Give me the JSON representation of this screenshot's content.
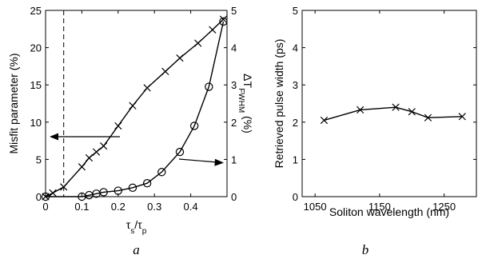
{
  "chart_data": [
    {
      "id": "a",
      "panel_label": "a",
      "type": "line",
      "xlabel": "τ_s/τ_p",
      "xlim": [
        0,
        0.5
      ],
      "xticks": [
        0,
        0.1,
        0.2,
        0.3,
        0.4
      ],
      "xtick_labels": [
        "0",
        "0.1",
        "0.2",
        "0.3",
        "0.4"
      ],
      "ylabel_left": "Misfit parameter (%)",
      "ylim_left": [
        0,
        25
      ],
      "yticks_left": [
        0,
        5,
        10,
        15,
        20,
        25
      ],
      "ylabel_right": "ΔT_FWHM (%)",
      "ylim_right": [
        0,
        5
      ],
      "yticks_right": [
        0,
        1,
        2,
        3,
        4,
        5
      ],
      "vline_x": 0.05,
      "series": [
        {
          "axis": "left",
          "marker": "x",
          "x": [
            0,
            0.02,
            0.05,
            0.1,
            0.12,
            0.14,
            0.16,
            0.2,
            0.24,
            0.28,
            0.33,
            0.37,
            0.42,
            0.46,
            0.49
          ],
          "y": [
            0,
            0.5,
            1.3,
            4.0,
            5.2,
            6.0,
            6.8,
            9.5,
            12.2,
            14.6,
            16.8,
            18.6,
            20.6,
            22.4,
            23.8
          ]
        },
        {
          "axis": "right",
          "marker": "o",
          "x": [
            0,
            0.1,
            0.12,
            0.14,
            0.16,
            0.2,
            0.24,
            0.28,
            0.32,
            0.37,
            0.41,
            0.45,
            0.49
          ],
          "y": [
            0,
            0.0,
            0.04,
            0.08,
            0.12,
            0.16,
            0.24,
            0.36,
            0.66,
            1.2,
            1.9,
            2.95,
            4.7
          ]
        }
      ],
      "arrows": [
        {
          "points_to": "left"
        },
        {
          "points_to": "right"
        }
      ]
    },
    {
      "id": "b",
      "panel_label": "b",
      "type": "line",
      "xlabel": "Soliton wavelength (nm)",
      "xlim": [
        1030,
        1300
      ],
      "xticks": [
        1050,
        1150,
        1250
      ],
      "xtick_labels": [
        "1050",
        "1150",
        "1250"
      ],
      "ylabel": "Retrieved pulse width (ps)",
      "ylim": [
        0,
        5
      ],
      "yticks": [
        0,
        1,
        2,
        3,
        4,
        5
      ],
      "series": [
        {
          "marker": "x",
          "x": [
            1064,
            1120,
            1175,
            1200,
            1225,
            1278
          ],
          "y": [
            2.05,
            2.33,
            2.4,
            2.28,
            2.12,
            2.15
          ]
        }
      ]
    }
  ]
}
